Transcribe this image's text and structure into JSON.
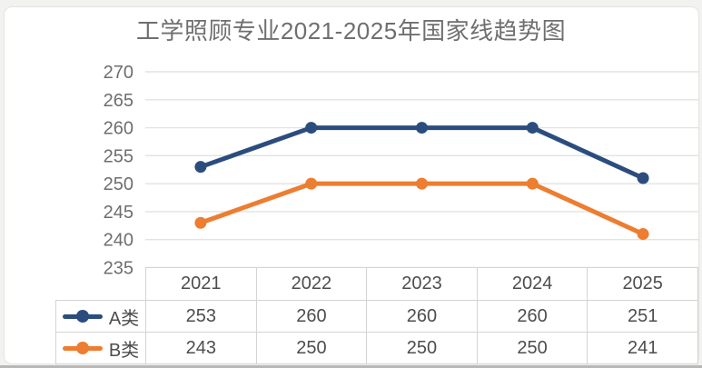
{
  "page": {
    "background": "#f2f2f0",
    "card_background": "#ffffff",
    "card_border": "#e4e4e2",
    "grid_color": "#e3e3e3",
    "axis_label_color": "#6e6e6e",
    "table_text_color": "#4d4d4d",
    "table_border_color": "#d4d4d4",
    "title_color": "#6f6f6f"
  },
  "chart_data": {
    "type": "line",
    "title": "工学照顾专业2021-2025年国家线趋势图",
    "categories": [
      "2021",
      "2022",
      "2023",
      "2024",
      "2025"
    ],
    "series": [
      {
        "name": "A类",
        "color": "#2B4D7E",
        "values": [
          253,
          260,
          260,
          260,
          251
        ]
      },
      {
        "name": "B类",
        "color": "#ED7D31",
        "values": [
          243,
          250,
          250,
          250,
          241
        ]
      }
    ],
    "xlabel": "",
    "ylabel": "",
    "ylim": [
      235,
      270
    ],
    "yticks": [
      270,
      265,
      260,
      255,
      250,
      245,
      240,
      235
    ],
    "grid": true,
    "marker": "circle",
    "legend_position": "data-table-left",
    "data_table_shown": true
  }
}
